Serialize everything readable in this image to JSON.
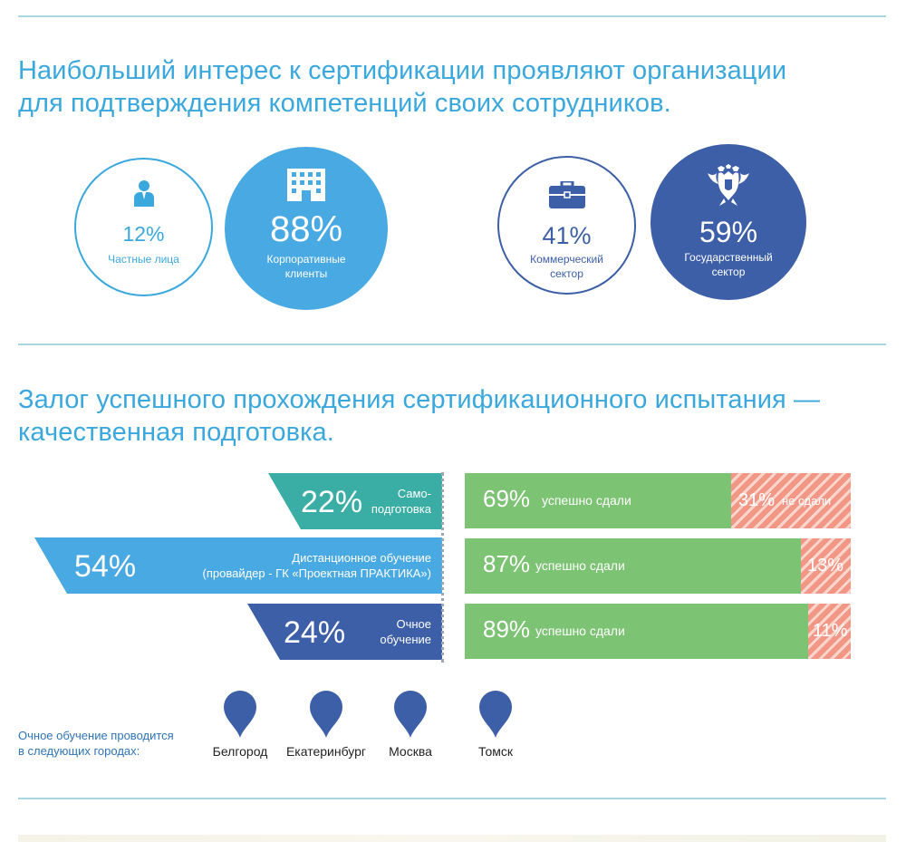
{
  "section1": {
    "title_line1": "Наибольший интерес к сертификации проявляют организации",
    "title_line2": "для подтверждения компетенций своих сотрудников.",
    "circles": [
      {
        "value": "12%",
        "label_lines": [
          "Частные лица"
        ],
        "icon": "person-icon",
        "style": "outline",
        "color": "#3aa8dc"
      },
      {
        "value": "88%",
        "label_lines": [
          "Корпоративные",
          "клиенты"
        ],
        "icon": "building-icon",
        "style": "filled",
        "color": "#49a9e2"
      },
      {
        "value": "41%",
        "label_lines": [
          "Коммерческий",
          "сектор"
        ],
        "icon": "briefcase-icon",
        "style": "outline",
        "color": "#3d5fa8"
      },
      {
        "value": "59%",
        "label_lines": [
          "Государственный",
          "сектор"
        ],
        "icon": "coat-of-arms-icon",
        "style": "filled",
        "color": "#3d5fa8"
      }
    ]
  },
  "section2": {
    "title_line1": "Залог успешного прохождения сертификационного испытания —",
    "title_line2": "качественная подготовка.",
    "training": [
      {
        "value": "22%",
        "label_lines": [
          "Само-",
          "подготовка"
        ],
        "color": "#3aada5",
        "pass_value": "69%",
        "pass_label": "успешно сдали",
        "fail_value": "31%",
        "fail_label": "не сдали"
      },
      {
        "value": "54%",
        "label_lines": [
          "Дистанционное обучение",
          "(провайдер - ГК «Проектная ПРАКТИКА»)"
        ],
        "color": "#49a9e2",
        "pass_value": "87%",
        "pass_label": "успешно сдали",
        "fail_value": "13%",
        "fail_label": ""
      },
      {
        "value": "24%",
        "label_lines": [
          "Очное",
          "обучение"
        ],
        "color": "#3d5fa8",
        "pass_value": "89%",
        "pass_label": "успешно сдали",
        "fail_value": "11%",
        "fail_label": ""
      }
    ],
    "colors": {
      "pass": "#7dc374",
      "fail": "#f29786"
    },
    "cities_note_line1": "Очное обучение проводится",
    "cities_note_line2": "в следующих городах:",
    "cities": [
      "Белгород",
      "Екатеринбург",
      "Москва",
      "Томск"
    ]
  },
  "chart_data": [
    {
      "type": "pie",
      "categories": [
        "Частные лица",
        "Корпоративные клиенты"
      ],
      "values": [
        12,
        88
      ]
    },
    {
      "type": "pie",
      "categories": [
        "Коммерческий сектор",
        "Государственный сектор"
      ],
      "values": [
        41,
        59
      ]
    },
    {
      "type": "bar",
      "categories": [
        "Самоподготовка",
        "Дистанционное обучение",
        "Очное обучение"
      ],
      "values": [
        22,
        54,
        24
      ]
    },
    {
      "type": "bar",
      "stacked": true,
      "categories": [
        "Самоподготовка",
        "Дистанционное обучение",
        "Очное обучение"
      ],
      "series": [
        {
          "name": "успешно сдали",
          "values": [
            69,
            87,
            89
          ]
        },
        {
          "name": "не сдали",
          "values": [
            31,
            13,
            11
          ]
        }
      ]
    }
  ]
}
